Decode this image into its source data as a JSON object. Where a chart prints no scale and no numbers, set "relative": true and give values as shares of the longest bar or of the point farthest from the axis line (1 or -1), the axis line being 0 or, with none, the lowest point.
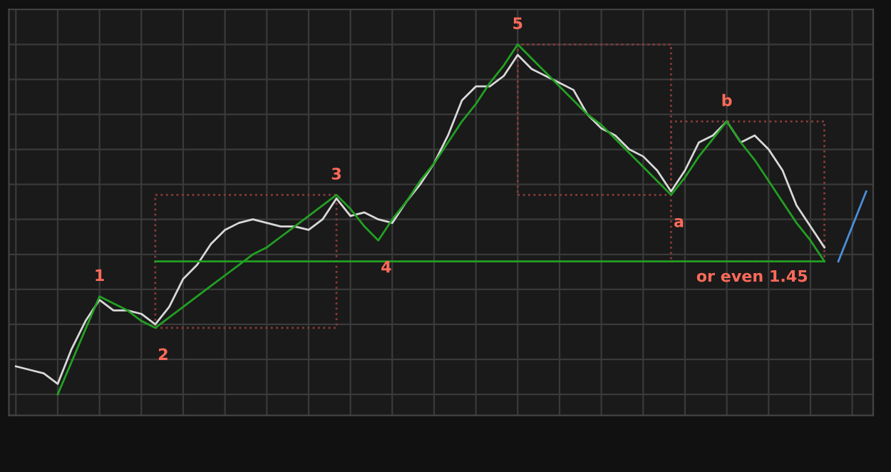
{
  "chart_data": {
    "type": "line",
    "relative": true,
    "grid": true,
    "tick_labels": false,
    "categories": [
      null,
      null,
      null,
      null,
      null,
      null,
      null,
      null,
      null,
      null,
      null,
      null,
      null,
      null,
      null,
      null,
      null,
      null,
      null,
      null,
      null,
      null,
      null,
      null,
      null,
      null,
      null,
      null,
      null,
      null,
      null,
      null,
      null,
      null,
      null,
      null,
      null,
      null,
      null,
      null,
      null,
      null,
      null,
      null,
      null,
      null,
      null,
      null,
      null,
      null,
      null,
      null,
      null,
      null,
      null,
      null,
      null,
      null,
      null,
      null,
      null,
      null
    ],
    "series": [
      {
        "color": "#d8d8d8",
        "values": [
          0.08,
          0.07,
          0.06,
          0.03,
          0.13,
          0.21,
          0.27,
          0.24,
          0.24,
          0.23,
          0.2,
          0.25,
          0.33,
          0.37,
          0.43,
          0.47,
          0.49,
          0.5,
          0.49,
          0.48,
          0.48,
          0.47,
          0.5,
          0.56,
          0.51,
          0.52,
          0.5,
          0.49,
          0.55,
          0.6,
          0.66,
          0.74,
          0.84,
          0.88,
          0.88,
          0.91,
          0.97,
          0.93,
          0.91,
          0.89,
          0.87,
          0.8,
          0.76,
          0.74,
          0.7,
          0.68,
          0.64,
          0.58,
          0.64,
          0.72,
          0.74,
          0.78,
          0.72,
          0.74,
          0.7,
          0.64,
          0.54,
          0.48,
          0.42,
          null,
          null,
          null
        ]
      },
      {
        "color": "#22a022",
        "values": [
          null,
          null,
          null,
          0,
          0.093,
          0.187,
          0.28,
          0.26,
          0.24,
          0.21,
          0.19,
          0.22,
          0.25,
          0.28,
          0.31,
          0.34,
          0.37,
          0.4,
          0.42,
          0.45,
          0.48,
          0.51,
          0.54,
          0.57,
          0.53,
          0.48,
          0.44,
          0.5,
          0.55,
          0.61,
          0.66,
          0.72,
          0.78,
          0.83,
          0.89,
          0.94,
          1,
          0.96,
          0.92,
          0.88,
          0.84,
          0.8,
          0.77,
          0.73,
          0.69,
          0.65,
          0.61,
          0.57,
          0.62,
          0.68,
          0.73,
          0.78,
          0.72,
          0.67,
          0.61,
          0.55,
          0.49,
          0.44,
          0.38,
          null,
          null,
          null
        ]
      },
      {
        "color": "#22a022",
        "values": [
          null,
          null,
          null,
          null,
          null,
          null,
          null,
          null,
          null,
          null,
          0.38,
          0.38,
          0.38,
          0.38,
          0.38,
          0.38,
          0.38,
          0.38,
          0.38,
          0.38,
          0.38,
          0.38,
          0.38,
          0.38,
          0.38,
          0.38,
          0.38,
          0.38,
          0.38,
          0.38,
          0.38,
          0.38,
          0.38,
          0.38,
          0.38,
          0.38,
          0.38,
          0.38,
          0.38,
          0.38,
          0.38,
          0.38,
          0.38,
          0.38,
          0.38,
          0.38,
          0.38,
          0.38,
          0.38,
          0.38,
          0.38,
          0.38,
          0.38,
          0.38,
          0.38,
          0.38,
          0.38,
          0.38,
          0.38,
          null,
          null,
          null
        ]
      },
      {
        "color": "#4a90d9",
        "values": [
          null,
          null,
          null,
          null,
          null,
          null,
          null,
          null,
          null,
          null,
          null,
          null,
          null,
          null,
          null,
          null,
          null,
          null,
          null,
          null,
          null,
          null,
          null,
          null,
          null,
          null,
          null,
          null,
          null,
          null,
          null,
          null,
          null,
          null,
          null,
          null,
          null,
          null,
          null,
          null,
          null,
          null,
          null,
          null,
          null,
          null,
          null,
          null,
          null,
          null,
          null,
          null,
          null,
          null,
          null,
          null,
          null,
          null,
          null,
          0.38,
          0.48,
          0.58
        ]
      }
    ],
    "annotations": [
      "1",
      "2",
      "3",
      "4",
      "5",
      "a",
      "b",
      "or even 1.45"
    ]
  }
}
